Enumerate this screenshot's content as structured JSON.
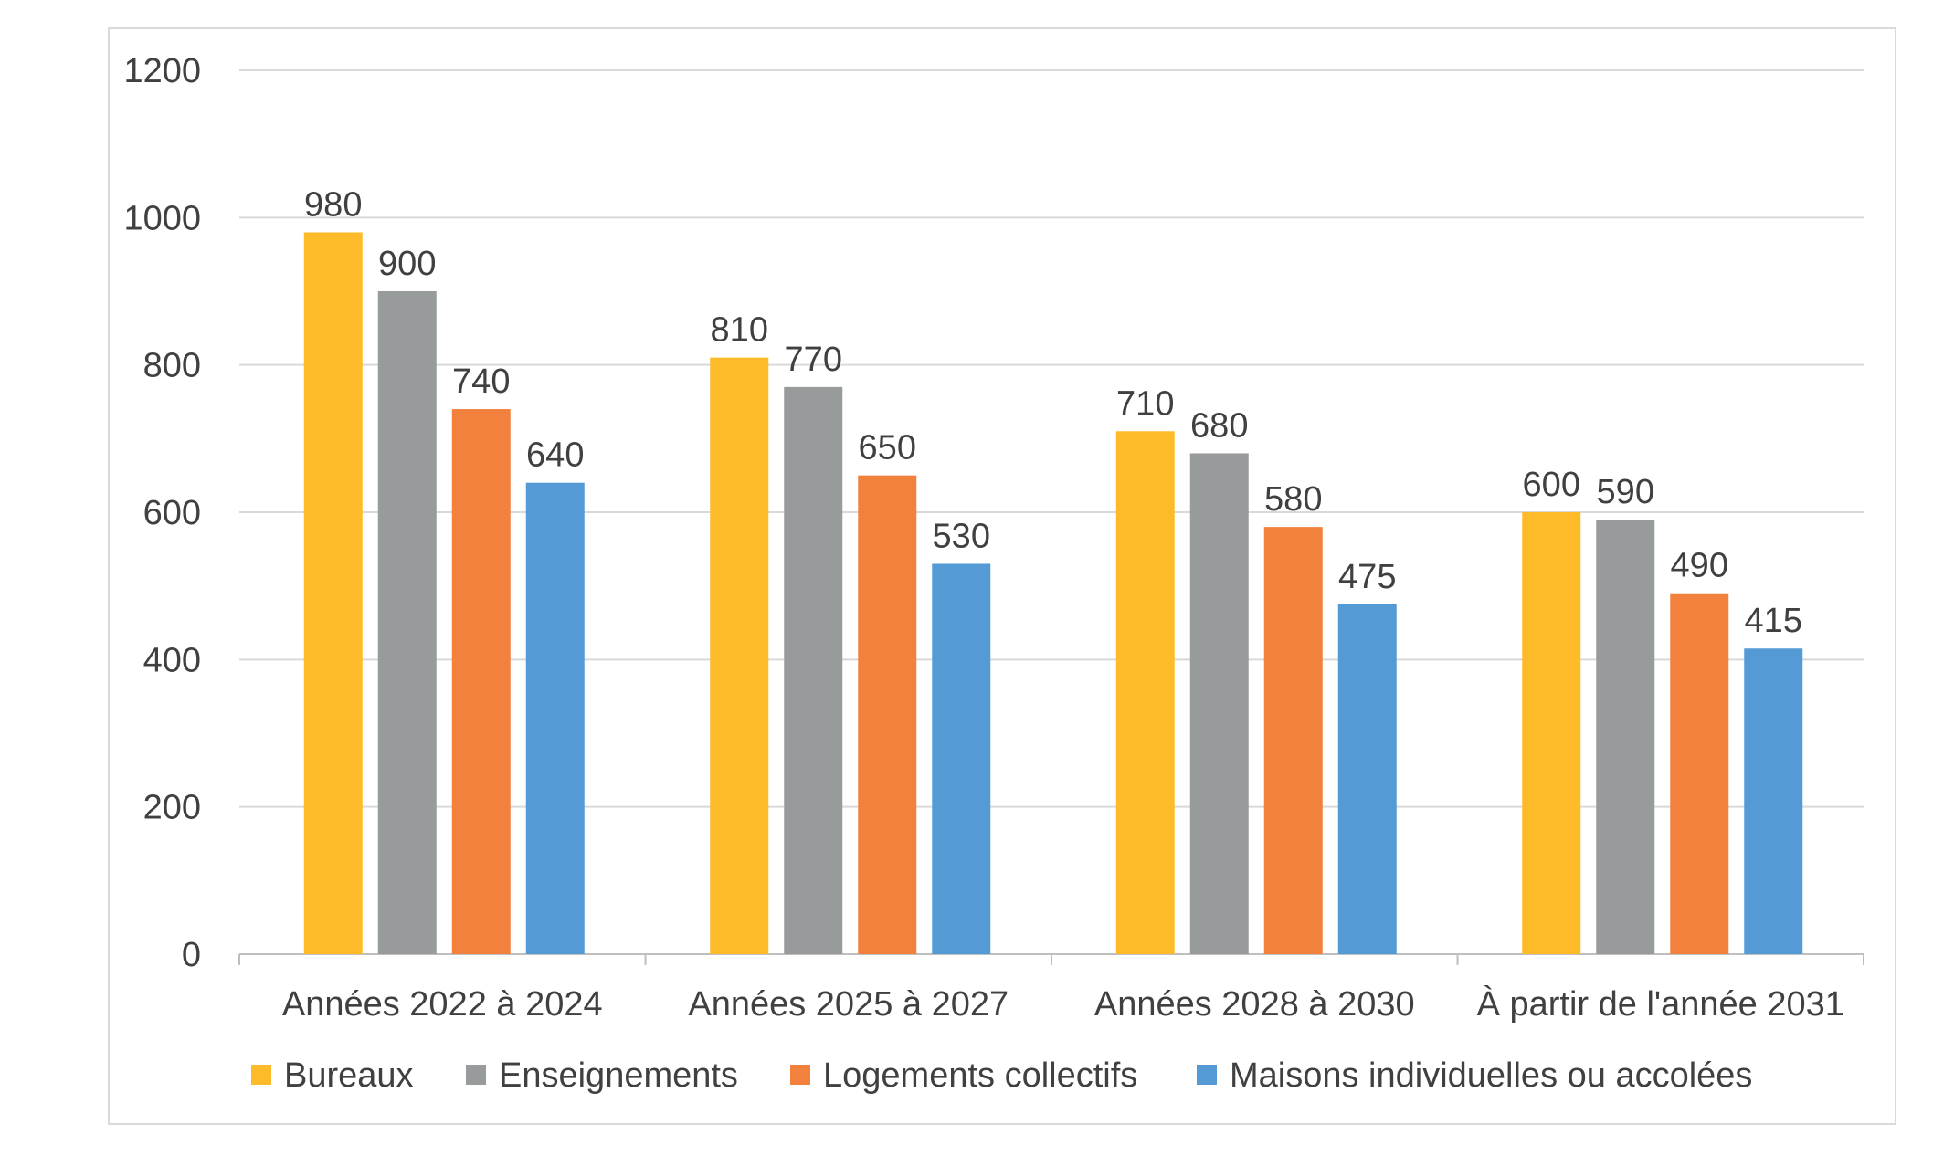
{
  "chart_data": {
    "type": "bar",
    "title": "",
    "xlabel": "",
    "ylabel": "",
    "categories": [
      "Années 2022 à 2024",
      "Années 2025 à 2027",
      "Années 2028 à 2030",
      "À partir de l'année 2031"
    ],
    "series": [
      {
        "name": "Bureaux",
        "color": "#FDBB2A",
        "values": [
          980,
          810,
          710,
          600
        ]
      },
      {
        "name": "Enseignements",
        "color": "#979B9C",
        "values": [
          900,
          770,
          680,
          590
        ]
      },
      {
        "name": "Logements collectifs",
        "color": "#F2813D",
        "values": [
          740,
          650,
          580,
          490
        ]
      },
      {
        "name": "Maisons individuelles ou accolées",
        "color": "#549BD6",
        "values": [
          640,
          530,
          475,
          415
        ]
      }
    ],
    "yticks": [
      "0",
      "200",
      "400",
      "600",
      "800",
      "1000",
      "1200"
    ],
    "ylim": [
      0,
      1200
    ],
    "grid": true,
    "legend_position": "bottom",
    "data_labels": true
  }
}
